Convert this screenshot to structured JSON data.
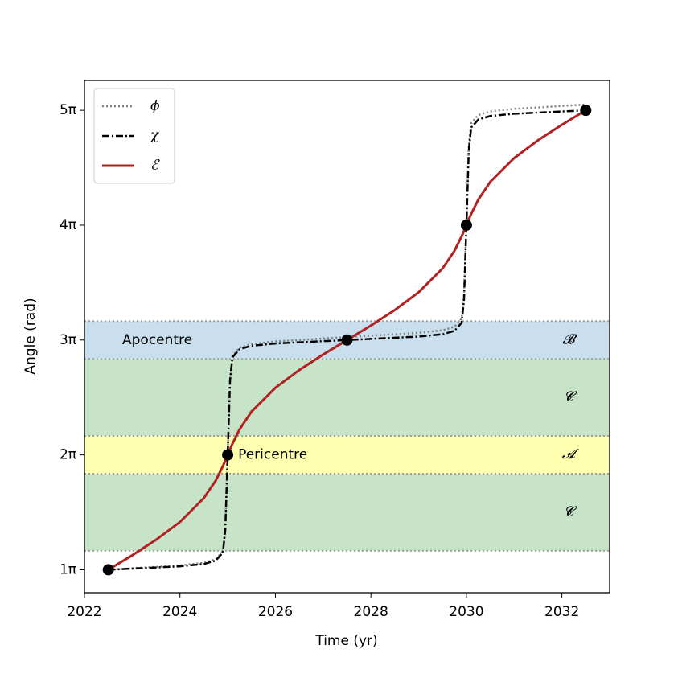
{
  "chart_data": {
    "type": "line",
    "xlabel": "Time (yr)",
    "ylabel": "Angle (rad)",
    "xlim": [
      2022,
      2033
    ],
    "ylim": [
      0.8,
      5.26
    ],
    "xticks": [
      2022,
      2024,
      2026,
      2028,
      2030,
      2032
    ],
    "yticks": [
      {
        "value": 1,
        "label": "1π"
      },
      {
        "value": 2,
        "label": "2π"
      },
      {
        "value": 3,
        "label": "3π"
      },
      {
        "value": 4,
        "label": "4π"
      },
      {
        "value": 5,
        "label": "5π"
      }
    ],
    "legend": "upper left",
    "x": [
      2022.5,
      2023,
      2023.5,
      2024,
      2024.5,
      2024.75,
      2024.9,
      2024.95,
      2025,
      2025.05,
      2025.1,
      2025.25,
      2025.5,
      2026,
      2026.5,
      2027,
      2027.5,
      2028,
      2028.5,
      2029,
      2029.5,
      2029.75,
      2029.9,
      2029.95,
      2030,
      2030.05,
      2030.1,
      2030.25,
      2030.5,
      2031,
      2031.5,
      2032,
      2032.5
    ],
    "series": [
      {
        "name": "𝜙",
        "color": "#808080",
        "style": "dotted",
        "values": [
          1,
          1.013,
          1.025,
          1.038,
          1.06,
          1.091,
          1.162,
          1.362,
          2.013,
          2.663,
          2.863,
          2.934,
          2.965,
          2.988,
          3,
          3.013,
          3.025,
          3.038,
          3.05,
          3.063,
          3.085,
          3.116,
          3.187,
          3.387,
          4.038,
          4.688,
          4.888,
          4.959,
          4.99,
          5.013,
          5.025,
          5.038,
          5.05
        ]
      },
      {
        "name": "𝜒",
        "color": "#000000",
        "style": "dashdot",
        "values": [
          1,
          1.01,
          1.02,
          1.03,
          1.05,
          1.08,
          1.15,
          1.35,
          2,
          2.65,
          2.85,
          2.92,
          2.95,
          2.97,
          2.98,
          2.99,
          3,
          3.01,
          3.02,
          3.03,
          3.05,
          3.08,
          3.15,
          3.35,
          4,
          4.65,
          4.85,
          4.92,
          4.95,
          4.97,
          4.98,
          4.99,
          5
        ]
      },
      {
        "name": "ℰ",
        "color": "#b22222",
        "style": "solid",
        "values": [
          1,
          1.126,
          1.261,
          1.416,
          1.623,
          1.777,
          1.902,
          1.95,
          2,
          2.05,
          2.098,
          2.223,
          2.377,
          2.584,
          2.739,
          2.874,
          3,
          3.126,
          3.261,
          3.416,
          3.623,
          3.777,
          3.902,
          3.95,
          4,
          4.05,
          4.098,
          4.223,
          4.377,
          4.584,
          4.739,
          4.874,
          5
        ]
      }
    ],
    "markers": {
      "color": "#000000",
      "x": [
        2022.5,
        2025,
        2027.5,
        2030,
        2032.5
      ],
      "values": [
        1,
        2,
        3,
        4,
        5
      ]
    },
    "annotations": [
      "Pericentre",
      "Apocentre"
    ],
    "bands": [
      {
        "label": "𝓑",
        "range": [
          2.835,
          3.165
        ],
        "color": "#c9dfee"
      },
      {
        "label": "𝓒",
        "range": [
          2.165,
          2.835
        ],
        "color": "#c8e4c8"
      },
      {
        "label": "𝓐",
        "range": [
          1.835,
          2.165
        ],
        "color": "#ffffb0"
      },
      {
        "label": "𝓒",
        "range": [
          1.165,
          1.835
        ],
        "color": "#c8e4c8"
      }
    ]
  }
}
